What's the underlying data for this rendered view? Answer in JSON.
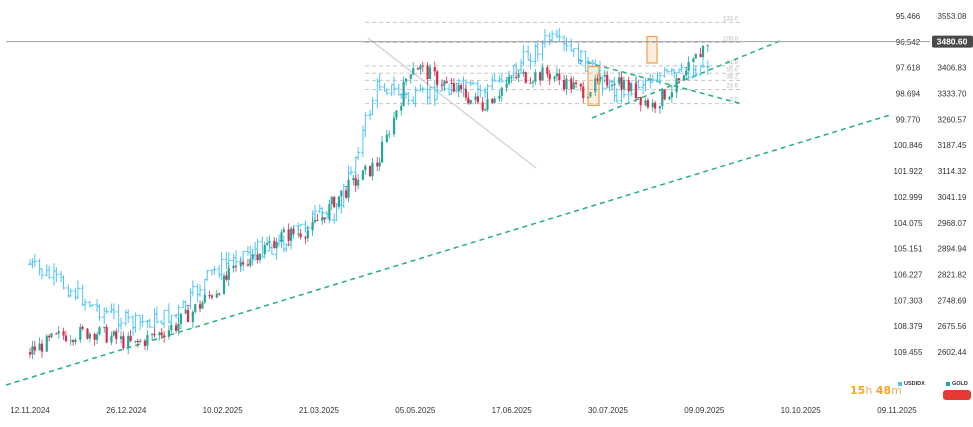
{
  "chart_data": {
    "type": "line",
    "title": "",
    "series": [
      {
        "name": "USDIDX",
        "axis": "left",
        "inverted": true,
        "style": "bars",
        "x": [
          "2024-11-12",
          "2024-11-26",
          "2024-12-10",
          "2024-12-26",
          "2025-01-13",
          "2025-01-28",
          "2025-02-10",
          "2025-02-25",
          "2025-03-10",
          "2025-03-21",
          "2025-04-07",
          "2025-04-21",
          "2025-05-05",
          "2025-05-20",
          "2025-06-03",
          "2025-06-17",
          "2025-07-01",
          "2025-07-15",
          "2025-07-30",
          "2025-08-12",
          "2025-08-22"
        ],
        "values": [
          105.8,
          106.6,
          107.6,
          108.3,
          107.9,
          106.1,
          105.3,
          105.0,
          103.9,
          103.6,
          98.2,
          99.0,
          98.4,
          98.6,
          97.6,
          96.4,
          97.3,
          98.7,
          98.0,
          97.9,
          97.4
        ]
      },
      {
        "name": "GOLD",
        "axis": "right",
        "style": "candles",
        "x": [
          "2024-11-12",
          "2024-11-26",
          "2024-12-10",
          "2024-12-26",
          "2025-01-13",
          "2025-01-28",
          "2025-02-10",
          "2025-02-25",
          "2025-03-10",
          "2025-03-21",
          "2025-04-07",
          "2025-04-21",
          "2025-05-05",
          "2025-05-20",
          "2025-06-03",
          "2025-06-17",
          "2025-07-01",
          "2025-07-15",
          "2025-07-30",
          "2025-08-12",
          "2025-08-22"
        ],
        "values": [
          2602,
          2650,
          2660,
          2622,
          2680,
          2770,
          2860,
          2930,
          2950,
          3040,
          3140,
          3420,
          3360,
          3300,
          3380,
          3390,
          3340,
          3380,
          3300,
          3370,
          3480.6
        ]
      }
    ],
    "left_axis": {
      "label": "USDIDX",
      "inverted": true,
      "ticks": [
        "95.466",
        "96.542",
        "97.618",
        "98.694",
        "99.770",
        "100.846",
        "101.922",
        "102.999",
        "104.075",
        "105.151",
        "106.227",
        "107.303",
        "108.379",
        "109.455"
      ],
      "ylim": [
        95.466,
        109.455
      ]
    },
    "right_axis": {
      "label": "GOLD",
      "ticks": [
        "3553.08",
        "3480.60",
        "3406.83",
        "3333.70",
        "3260.57",
        "3187.45",
        "3114.32",
        "3041.19",
        "2968.07",
        "2894.94",
        "2821.82",
        "2748.69",
        "2675.56",
        "2602.44"
      ],
      "ylim": [
        2602.44,
        3553.08
      ]
    },
    "x_ticks": [
      "12.11.2024",
      "26.12.2024",
      "10.02.2025",
      "21.03.2025",
      "05.05.2025",
      "17.06.2025",
      "30.07.2025",
      "09.09.2025",
      "10.10.2025",
      "09.11.2025"
    ],
    "current_price": "3480.60",
    "fib_levels": [
      {
        "label": "133.0",
        "price": 3535
      },
      {
        "label": "100.0",
        "price": 3478
      },
      {
        "label": "61.8",
        "price": 3412
      },
      {
        "label": "50.0",
        "price": 3391
      },
      {
        "label": "38.2",
        "price": 3371
      },
      {
        "label": "23.6",
        "price": 3345
      },
      {
        "label": "0.0",
        "price": 3305
      }
    ],
    "grid": false
  },
  "countdown": {
    "hours": "15",
    "hours_unit": "h",
    "minutes": "48",
    "minutes_unit": "m"
  },
  "legend": [
    {
      "name": "USDIDX",
      "color": "#4fc3f7"
    },
    {
      "name": "GOLD",
      "color": "#26a69a"
    }
  ],
  "colors": {
    "usd": "#4fc3f7",
    "up": "#26a69a",
    "down": "#d32f4a",
    "trend": "#26b07a",
    "fib": "#c8c8c8",
    "box": "#f0a050",
    "price_line": "#9aa0a6",
    "price_tag": "#4a4a4a",
    "gold_button": "#e53935"
  }
}
